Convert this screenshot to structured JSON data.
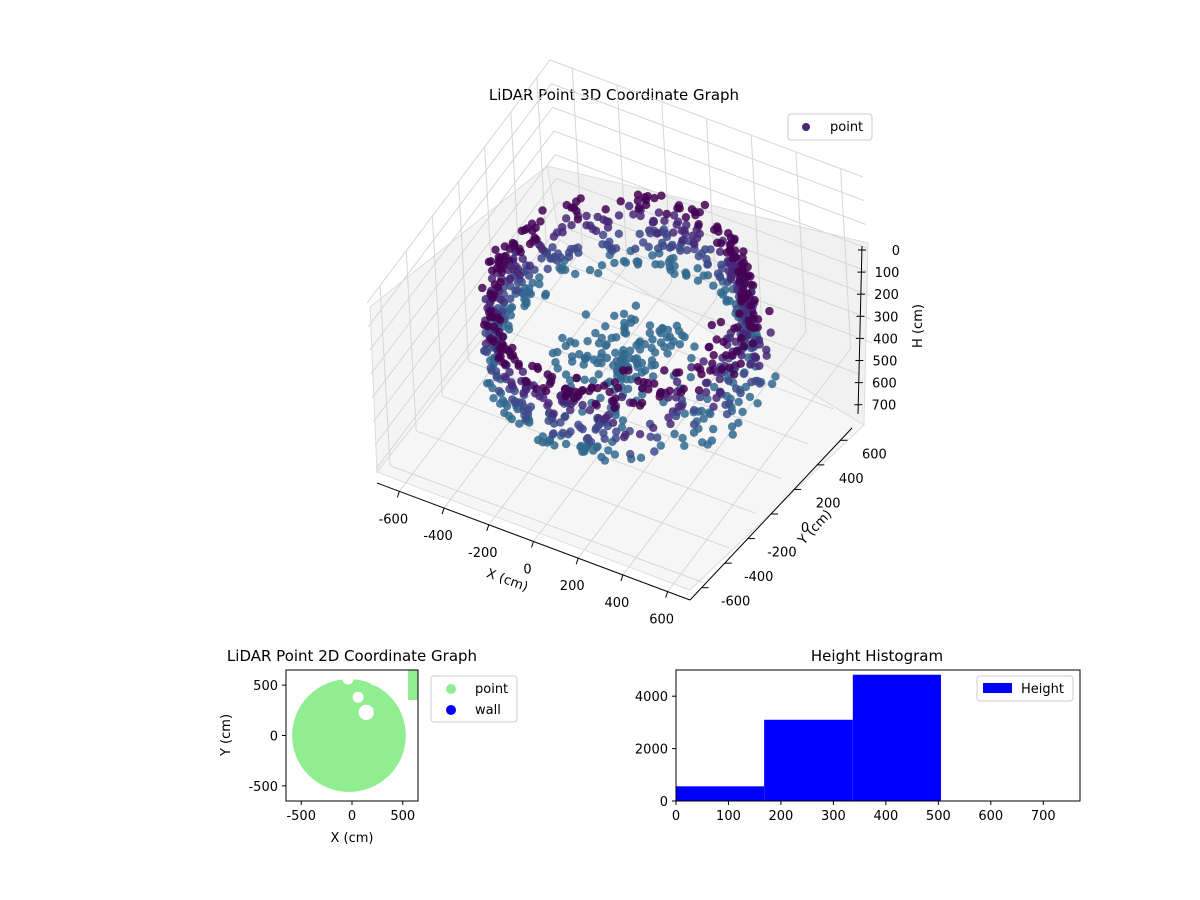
{
  "chart_data": [
    {
      "type": "scatter3d",
      "title": "LiDAR Point 3D Coordinate Graph",
      "xlabel": "X (cm)",
      "ylabel": "Y (cm)",
      "zlabel": "H (cm)",
      "xlim": [
        -700,
        700
      ],
      "ylim": [
        -700,
        700
      ],
      "zlim": [
        0,
        760
      ],
      "z_inverted": true,
      "xticks": [
        -600,
        -400,
        -200,
        0,
        200,
        400,
        600
      ],
      "yticks": [
        -600,
        -400,
        -200,
        0,
        200,
        400,
        600
      ],
      "zticks": [
        0,
        100,
        200,
        300,
        400,
        500,
        600,
        700
      ],
      "legend": {
        "labels": [
          "point"
        ],
        "placement": "top-right"
      },
      "colormap": [
        "#440154",
        "#482878",
        "#3e4a89",
        "#31688e"
      ],
      "series": [
        {
          "name": "point",
          "shape": "cylinder",
          "radius": 500,
          "h_range": [
            200,
            520
          ],
          "note_sector": "open toward +x/-y"
        }
      ],
      "grid": true
    },
    {
      "type": "scatter",
      "title": "LiDAR Point 2D Coordinate Graph",
      "xlabel": "X (cm)",
      "ylabel": "Y (cm)",
      "xlim": [
        -650,
        650
      ],
      "ylim": [
        -650,
        650
      ],
      "xticks": [
        -500,
        0,
        500
      ],
      "yticks": [
        -500,
        0,
        500
      ],
      "legend": {
        "labels": [
          "point",
          "wall"
        ],
        "placement": "outside-right"
      },
      "series": [
        {
          "name": "point",
          "color": "#90ee90",
          "shape": "disk",
          "radius": 560
        },
        {
          "name": "wall",
          "color": "#0000ff",
          "points": []
        }
      ],
      "grid": false
    },
    {
      "type": "bar",
      "title": "Height Histogram",
      "xlim": [
        0,
        770
      ],
      "ylim": [
        0,
        5000
      ],
      "xticks": [
        0,
        100,
        200,
        300,
        400,
        500,
        600,
        700
      ],
      "yticks": [
        0,
        2000,
        4000
      ],
      "legend": {
        "labels": [
          "Height"
        ],
        "placement": "top-right"
      },
      "bins": [
        {
          "x0": 0,
          "x1": 168,
          "value": 560
        },
        {
          "x0": 168,
          "x1": 337,
          "value": 3100
        },
        {
          "x0": 337,
          "x1": 505,
          "value": 4820
        }
      ],
      "series": [
        {
          "name": "Height",
          "color": "#0000ff"
        }
      ],
      "grid": false
    }
  ]
}
